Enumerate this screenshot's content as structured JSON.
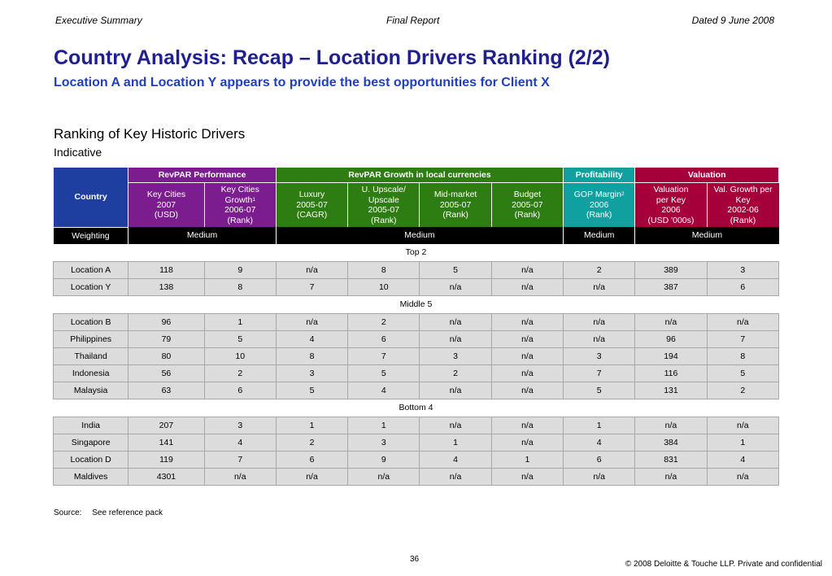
{
  "header": {
    "left": "Executive Summary",
    "center": "Final Report",
    "right": "Dated 9 June 2008"
  },
  "title": "Country Analysis: Recap – Location Drivers Ranking (2/2)",
  "subtitle": "Location A and Location Y appears to provide the best opportunities for Client X",
  "section_title": "Ranking of Key Historic Drivers",
  "section_subtitle": "Indicative",
  "table": {
    "country_header": "Country",
    "groups": {
      "revpar_performance": "RevPAR Performance",
      "revpar_growth": "RevPAR Growth in local currencies",
      "profitability": "Profitability",
      "valuation": "Valuation"
    },
    "columns": {
      "key_cities": [
        "Key Cities",
        "2007",
        "(USD)"
      ],
      "key_cities_growth": [
        "Key Cities Growth",
        "2006-07",
        "(Rank)"
      ],
      "key_cities_growth_sup": "1",
      "luxury": [
        "Luxury",
        "2005-07",
        "(CAGR)"
      ],
      "upscale": [
        "U. Upscale/",
        "Upscale",
        "2005-07",
        "(Rank)"
      ],
      "midmarket": [
        "Mid-market",
        "2005-07",
        "(Rank)"
      ],
      "budget": [
        "Budget",
        "2005-07",
        "(Rank)"
      ],
      "gop": [
        "GOP Margin",
        "2006",
        "(Rank)"
      ],
      "gop_sup": "2",
      "valuation_key": [
        "Valuation",
        "per Key",
        "2006",
        "(USD '000s)"
      ],
      "val_growth": [
        "Val. Growth per",
        "Key",
        "2002-06",
        "(Rank)"
      ]
    },
    "colors": {
      "purple": "#7b1d8e",
      "green": "#2e7d12",
      "teal": "#11a0a0",
      "crimson": "#a6003a",
      "navy": "#1f3fa0"
    },
    "weighting": {
      "label": "Weighting",
      "revpar_performance": "Medium",
      "revpar_growth": "Medium",
      "profitability": "Medium",
      "valuation": "Medium"
    },
    "row_groups": [
      {
        "label": "Top 2",
        "rows": [
          [
            "Location A",
            "118",
            "9",
            "n/a",
            "8",
            "5",
            "n/a",
            "2",
            "389",
            "3"
          ],
          [
            "Location Y",
            "138",
            "8",
            "7",
            "10",
            "n/a",
            "n/a",
            "n/a",
            "387",
            "6"
          ]
        ]
      },
      {
        "label": "Middle 5",
        "rows": [
          [
            "Location B",
            "96",
            "1",
            "n/a",
            "2",
            "n/a",
            "n/a",
            "n/a",
            "n/a",
            "n/a"
          ],
          [
            "Philippines",
            "79",
            "5",
            "4",
            "6",
            "n/a",
            "n/a",
            "n/a",
            "96",
            "7"
          ],
          [
            "Thailand",
            "80",
            "10",
            "8",
            "7",
            "3",
            "n/a",
            "3",
            "194",
            "8"
          ],
          [
            "Indonesia",
            "56",
            "2",
            "3",
            "5",
            "2",
            "n/a",
            "7",
            "116",
            "5"
          ],
          [
            "Malaysia",
            "63",
            "6",
            "5",
            "4",
            "n/a",
            "n/a",
            "5",
            "131",
            "2"
          ]
        ]
      },
      {
        "label": "Bottom 4",
        "rows": [
          [
            "India",
            "207",
            "3",
            "1",
            "1",
            "n/a",
            "n/a",
            "1",
            "n/a",
            "n/a"
          ],
          [
            "Singapore",
            "141",
            "4",
            "2",
            "3",
            "1",
            "n/a",
            "4",
            "384",
            "1"
          ],
          [
            "Location D",
            "119",
            "7",
            "6",
            "9",
            "4",
            "1",
            "6",
            "831",
            "4"
          ],
          [
            "Maldives",
            "4301",
            "n/a",
            "n/a",
            "n/a",
            "n/a",
            "n/a",
            "n/a",
            "n/a",
            "n/a"
          ]
        ]
      }
    ]
  },
  "source": {
    "label": "Source:",
    "text": "See reference pack"
  },
  "page_number": "36",
  "copyright": "© 2008 Deloitte & Touche LLP. Private and confidential"
}
